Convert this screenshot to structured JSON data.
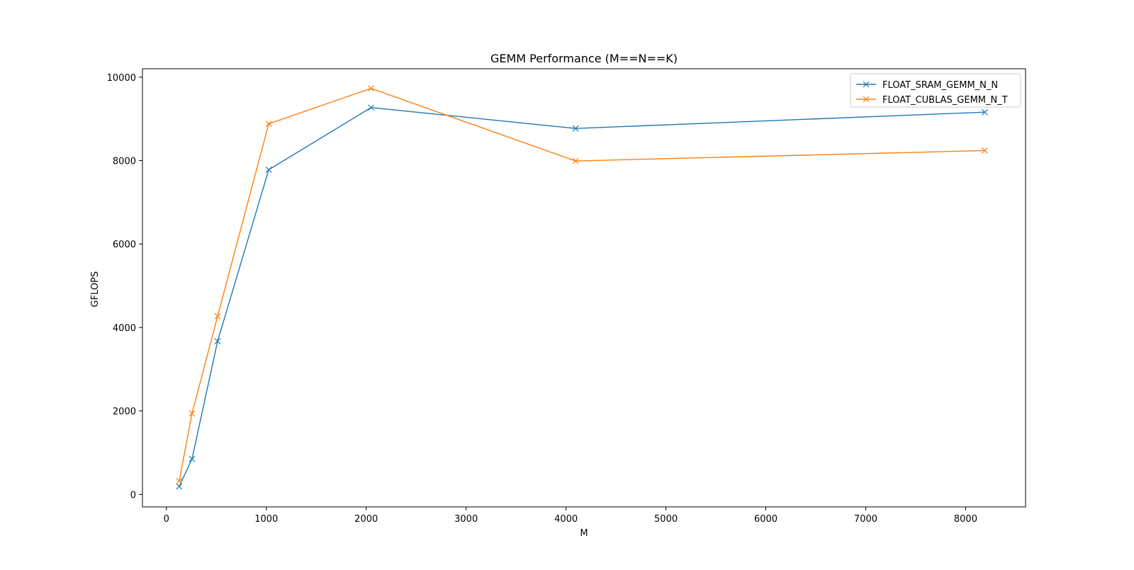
{
  "chart_data": {
    "type": "line",
    "title": "GEMM Performance (M==N==K)",
    "xlabel": "M",
    "ylabel": "GFLOPS",
    "xlim": [
      -240,
      8600
    ],
    "ylim": [
      -300,
      10200
    ],
    "xticks": [
      0,
      1000,
      2000,
      3000,
      4000,
      5000,
      6000,
      7000,
      8000
    ],
    "yticks": [
      0,
      2000,
      4000,
      6000,
      8000,
      10000
    ],
    "x": [
      128,
      256,
      512,
      1024,
      2048,
      4096,
      8192
    ],
    "grid": false,
    "legend_position": "top-right",
    "marker": "x",
    "series": [
      {
        "name": "FLOAT_SRAM_GEMM_N_N",
        "color": "#1f77b4",
        "values": [
          190,
          850,
          3670,
          7780,
          9270,
          8770,
          9160
        ]
      },
      {
        "name": "FLOAT_CUBLAS_GEMM_N_T",
        "color": "#ff7f0e",
        "values": [
          320,
          1940,
          4270,
          8880,
          9730,
          7990,
          8240
        ]
      }
    ]
  }
}
